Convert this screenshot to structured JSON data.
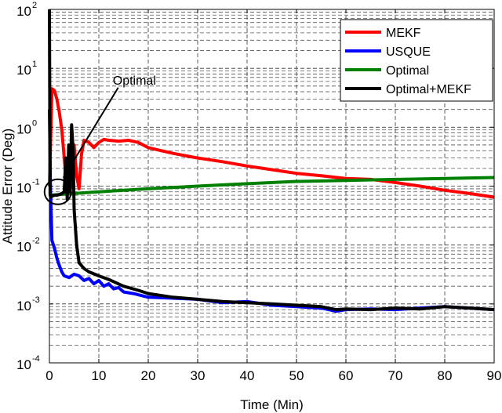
{
  "chart_data": {
    "type": "line",
    "xlabel": "Time (Min)",
    "ylabel": "Attitude Error (Deg)",
    "xlim": [
      0,
      90
    ],
    "ylim": [
      0.0001,
      100
    ],
    "yscale": "log",
    "grid": true,
    "legend_position": "top-right",
    "x_ticks": [
      0,
      10,
      20,
      30,
      40,
      50,
      60,
      70,
      80,
      90
    ],
    "y_ticks": [
      {
        "base": "10",
        "exp": "-4",
        "value": 0.0001
      },
      {
        "base": "10",
        "exp": "-3",
        "value": 0.001
      },
      {
        "base": "10",
        "exp": "-2",
        "value": 0.01
      },
      {
        "base": "10",
        "exp": "-1",
        "value": 0.1
      },
      {
        "base": "10",
        "exp": "0",
        "value": 1
      },
      {
        "base": "10",
        "exp": "1",
        "value": 10
      },
      {
        "base": "10",
        "exp": "2",
        "value": 100
      }
    ],
    "annotation": {
      "text": "Optimal",
      "points_to": [
        2.5,
        0.08
      ]
    },
    "series": [
      {
        "name": "MEKF",
        "color": "#ff0000",
        "x": [
          0,
          0.5,
          1,
          1.5,
          2,
          2.5,
          3,
          3.5,
          4,
          4.5,
          5,
          5.5,
          6,
          6.5,
          7,
          8,
          9,
          10,
          11,
          12,
          14,
          16,
          18,
          20,
          25,
          30,
          35,
          40,
          45,
          50,
          55,
          60,
          65,
          70,
          75,
          80,
          85,
          90
        ],
        "y": [
          0.1,
          4.5,
          4.2,
          3.0,
          1.8,
          0.9,
          0.3,
          0.1,
          0.08,
          0.1,
          0.5,
          0.15,
          0.09,
          0.35,
          0.6,
          0.55,
          0.45,
          0.55,
          0.62,
          0.6,
          0.58,
          0.6,
          0.55,
          0.45,
          0.36,
          0.3,
          0.26,
          0.22,
          0.19,
          0.165,
          0.15,
          0.135,
          0.13,
          0.115,
          0.1,
          0.085,
          0.075,
          0.065
        ]
      },
      {
        "name": "USQUE",
        "color": "#0000ff",
        "x": [
          0,
          0.2,
          0.5,
          1,
          1.5,
          2,
          2.5,
          3,
          4,
          5,
          6,
          7,
          8,
          9,
          10,
          11,
          12,
          13,
          14,
          15,
          17,
          20,
          25,
          30,
          35,
          40,
          45,
          50,
          55,
          58,
          60,
          65,
          70,
          75,
          80,
          85,
          90
        ],
        "y": [
          2.0,
          0.1,
          0.012,
          0.009,
          0.006,
          0.0045,
          0.0035,
          0.003,
          0.0028,
          0.0032,
          0.003,
          0.0025,
          0.0027,
          0.0022,
          0.0025,
          0.002,
          0.0022,
          0.0018,
          0.0019,
          0.0016,
          0.0015,
          0.0013,
          0.00125,
          0.0012,
          0.00105,
          0.0011,
          0.00095,
          0.0009,
          0.00085,
          0.00075,
          0.0008,
          0.00082,
          0.0008,
          0.00085,
          0.0009,
          0.00085,
          0.0008
        ]
      },
      {
        "name": "Optimal",
        "color": "#008000",
        "x": [
          0,
          5,
          10,
          15,
          20,
          30,
          40,
          50,
          60,
          70,
          80,
          90
        ],
        "y": [
          0.07,
          0.075,
          0.08,
          0.085,
          0.09,
          0.1,
          0.11,
          0.12,
          0.125,
          0.13,
          0.135,
          0.14
        ]
      },
      {
        "name": "Optimal+MEKF",
        "color": "#000000",
        "x": [
          0,
          0.15,
          0.3,
          0.6,
          1,
          1.5,
          2,
          2.5,
          3,
          3.3,
          3.6,
          3.9,
          4.2,
          4.5,
          4.8,
          5,
          5.5,
          6,
          7,
          8,
          10,
          12,
          15,
          18,
          20,
          25,
          30,
          35,
          40,
          45,
          50,
          55,
          58,
          60,
          65,
          70,
          75,
          80,
          85,
          90
        ],
        "y": [
          100,
          0.07,
          0.065,
          0.068,
          0.07,
          0.07,
          0.072,
          0.075,
          0.08,
          0.3,
          0.06,
          0.5,
          0.08,
          1.1,
          0.4,
          0.04,
          0.01,
          0.005,
          0.004,
          0.0035,
          0.003,
          0.0026,
          0.002,
          0.0017,
          0.0015,
          0.0013,
          0.0012,
          0.0011,
          0.00105,
          0.001,
          0.00095,
          0.0009,
          0.0008,
          0.00082,
          0.0008,
          0.00085,
          0.00082,
          0.0009,
          0.00085,
          0.0008
        ]
      }
    ]
  }
}
